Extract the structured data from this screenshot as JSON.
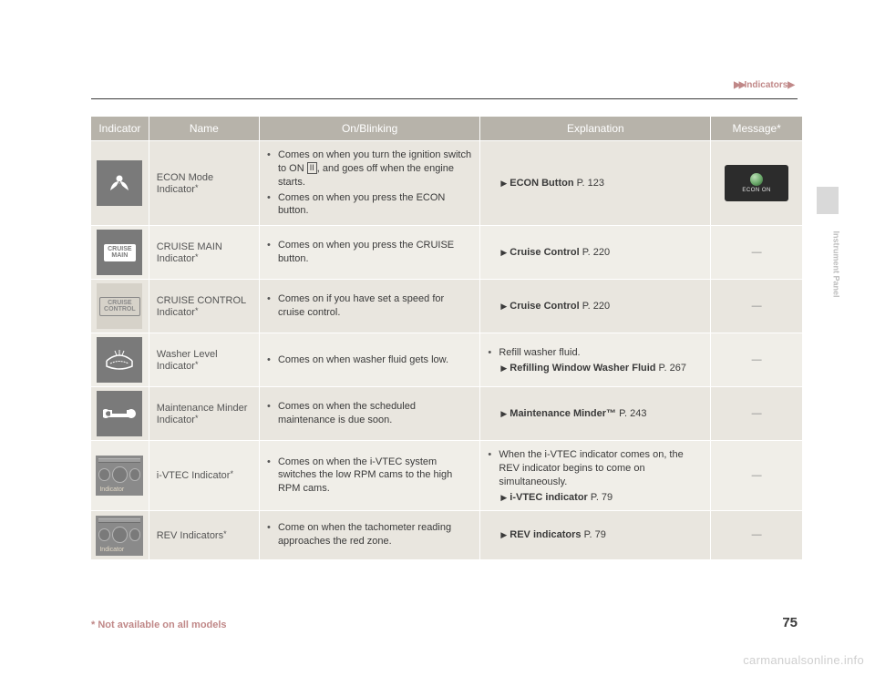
{
  "breadcrumb": {
    "prefix": "▶▶",
    "label": "Indicators",
    "suffix": "▶"
  },
  "sideTab": "Instrument Panel",
  "footnote": "* Not available on all models",
  "pageNumber": "75",
  "watermark": "carmanualsonline.info",
  "columns": [
    "Indicator",
    "Name",
    "On/Blinking",
    "Explanation",
    "Message*"
  ],
  "rows": [
    {
      "iconStyle": "econ-leaf",
      "name": "ECON Mode Indicator",
      "nameStar": true,
      "onItems": [
        {
          "pre": "Comes on when you turn the ignition switch to ON ",
          "boxed": "II",
          "post": ", and goes off when the engine starts."
        },
        {
          "pre": "Comes on when you press the ECON button."
        }
      ],
      "expItems": [],
      "expRefs": [
        {
          "arrow": "▶",
          "bold": "ECON Button",
          "tail": " P. 123"
        }
      ],
      "msgType": "econon",
      "msgText": "ECON ON"
    },
    {
      "iconStyle": "cruise-main",
      "iconText": "CRUISE\nMAIN",
      "name": "CRUISE MAIN Indicator",
      "nameStar": true,
      "onItems": [
        {
          "pre": "Comes on when you press the CRUISE button."
        }
      ],
      "expItems": [],
      "expRefs": [
        {
          "arrow": "▶",
          "bold": "Cruise Control",
          "tail": " P. 220"
        }
      ],
      "msgText": "—"
    },
    {
      "iconStyle": "cruise-control",
      "iconText": "CRUISE\nCONTROL",
      "name": "CRUISE CONTROL Indicator",
      "nameStar": true,
      "onItems": [
        {
          "pre": "Comes on if you have set a speed for cruise control."
        }
      ],
      "expItems": [],
      "expRefs": [
        {
          "arrow": "▶",
          "bold": "Cruise Control",
          "tail": " P. 220"
        }
      ],
      "msgText": "—"
    },
    {
      "iconStyle": "washer",
      "name": "Washer Level Indicator",
      "nameStar": true,
      "onItems": [
        {
          "pre": "Comes on when washer fluid gets low."
        }
      ],
      "expItems": [
        {
          "pre": "Refill washer fluid."
        }
      ],
      "expRefs": [
        {
          "arrow": "▶",
          "bold": "Refilling Window Washer Fluid",
          "tail": " P. 267",
          "sub": true
        }
      ],
      "msgText": "—"
    },
    {
      "iconStyle": "wrench",
      "name": "Maintenance Minder Indicator",
      "nameStar": true,
      "onItems": [
        {
          "pre": "Comes on when the scheduled maintenance is due soon."
        }
      ],
      "expItems": [],
      "expRefs": [
        {
          "arrow": "▶",
          "bold": "Maintenance Minder™",
          "tail": " P. 243"
        }
      ],
      "msgText": "—"
    },
    {
      "iconStyle": "gauge",
      "iconLabel": "Indicator",
      "name": "i-VTEC Indicator",
      "nameStar": true,
      "onItems": [
        {
          "pre": "Comes on when the i-VTEC system switches the low RPM cams to the high RPM cams."
        }
      ],
      "expItems": [
        {
          "pre": "When the i-VTEC indicator comes on, the REV indicator begins to come on simultaneously."
        }
      ],
      "expRefs": [
        {
          "arrow": "▶",
          "bold": "i-VTEC indicator",
          "tail": " P. 79",
          "sub": true
        }
      ],
      "msgText": "—"
    },
    {
      "iconStyle": "gauge",
      "iconLabel": "Indicator",
      "name": "REV Indicators",
      "nameStar": true,
      "onItems": [
        {
          "pre": "Come on when the tachometer reading approaches the red zone."
        }
      ],
      "expItems": [],
      "expRefs": [
        {
          "arrow": "▶",
          "bold": "REV indicators",
          "tail": " P. 79"
        }
      ],
      "msgText": "—"
    }
  ],
  "style": {
    "header_bg": "#b7b3aa",
    "row_alt_a": "#e9e6df",
    "row_alt_b": "#f0eee8",
    "text_color": "#3a3a3a",
    "accent_color": "#c08888",
    "font_size_body": 11,
    "font_size_header": 12
  }
}
